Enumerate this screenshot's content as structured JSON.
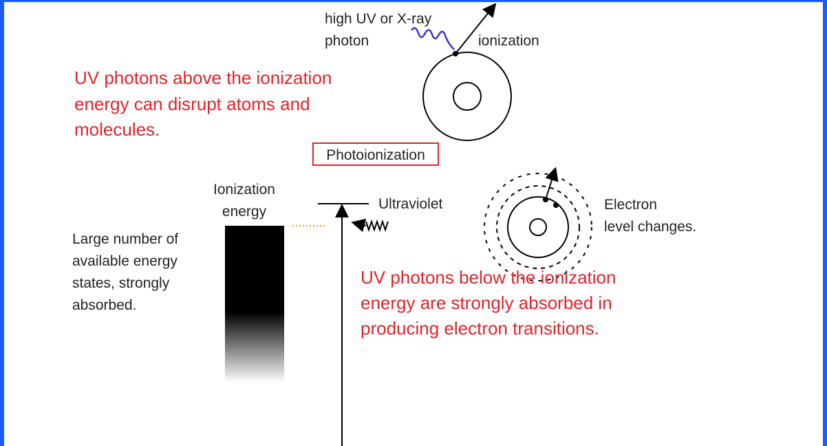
{
  "top_label": [
    "high UV or X-ray",
    "photon"
  ],
  "ionization_label": "ionization",
  "above_text": [
    "UV photons above the ionization",
    "energy can disrupt atoms and",
    "molecules."
  ],
  "box_label": "Photoionization",
  "ionization_energy_label": [
    "Ionization",
    "energy"
  ],
  "ultraviolet_label": "Ultraviolet",
  "states_text": [
    "Large number of",
    "available energy",
    "states, strongly",
    "absorbed."
  ],
  "electron_label": [
    "Electron",
    "level changes."
  ],
  "below_text": [
    "UV photons below the ionization",
    "energy are strongly absorbed in",
    "producing electron transitions."
  ]
}
